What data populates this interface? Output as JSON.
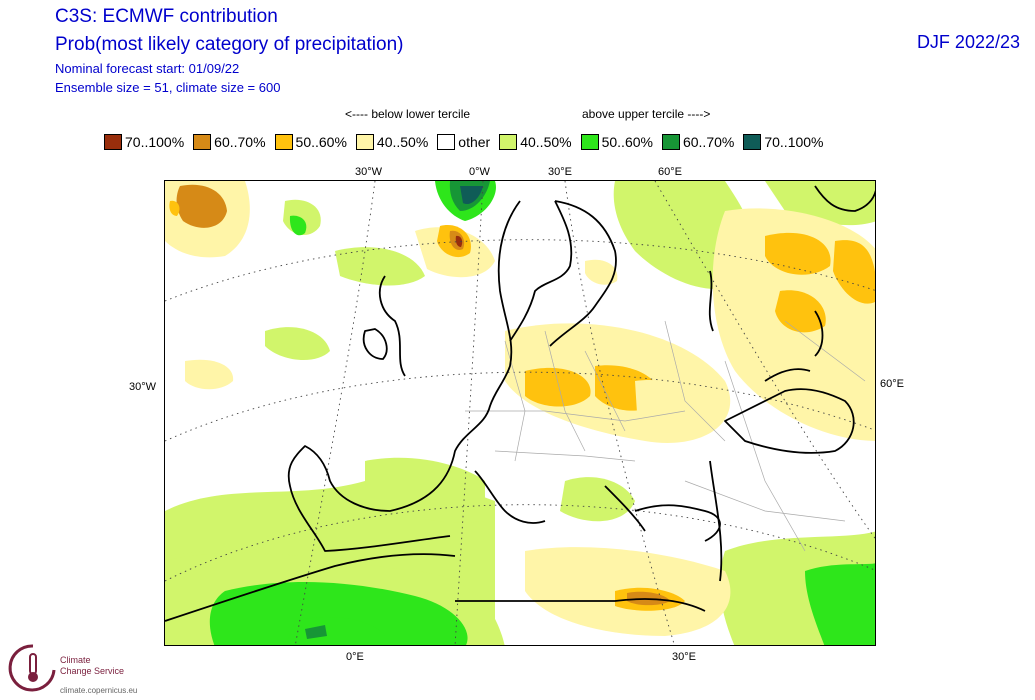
{
  "header": {
    "title": "C3S: ECMWF contribution",
    "subtitle": "Prob(most likely category of precipitation)",
    "start": "Nominal forecast start: 01/09/22",
    "ensemble": "Ensemble size = 51, climate size = 600",
    "season": "DJF 2022/23"
  },
  "legend": {
    "below_note": "<---- below lower tercile",
    "above_note": "above upper tercile ---->",
    "items": [
      {
        "label": "70..100%",
        "color": "#992e0c"
      },
      {
        "label": "60..70%",
        "color": "#d68a17"
      },
      {
        "label": "50..60%",
        "color": "#ffc20e"
      },
      {
        "label": "40..50%",
        "color": "#fff5a8"
      },
      {
        "label": "other",
        "color": "#ffffff"
      },
      {
        "label": "40..50%",
        "color": "#d1f56b"
      },
      {
        "label": "50..60%",
        "color": "#2ee61b"
      },
      {
        "label": "60..70%",
        "color": "#179636"
      },
      {
        "label": "70..100%",
        "color": "#0f5c57"
      }
    ]
  },
  "axes": {
    "top": [
      "30°W",
      "0°W",
      "30°E",
      "60°E"
    ],
    "left": "30°W",
    "right": "60°E",
    "bottom": [
      "0°E",
      "30°E"
    ]
  },
  "logo": {
    "line1": "Climate",
    "line2": "Change Service",
    "url": "climate.copernicus.eu"
  }
}
